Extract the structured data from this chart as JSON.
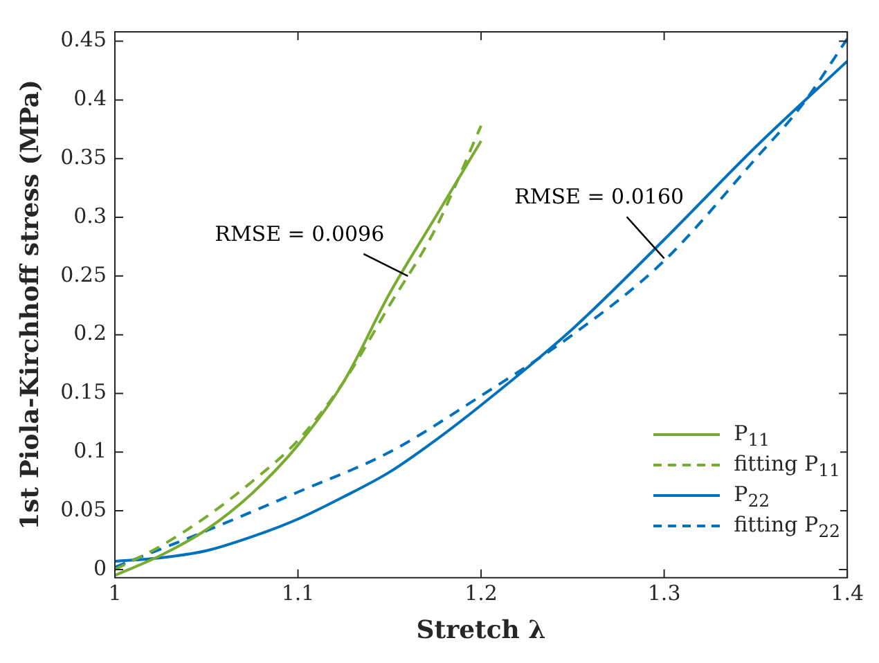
{
  "chart_data": {
    "type": "line",
    "xlabel": "Stretch λ",
    "ylabel": "1st Piola-Kirchhoff stress (MPa)",
    "xlim": [
      1,
      1.4
    ],
    "xticks": [
      1,
      1.1,
      1.2,
      1.3,
      1.4
    ],
    "ylim": [
      -0.007,
      0.458
    ],
    "yticks": [
      0,
      0.05,
      0.1,
      0.15,
      0.2,
      0.25,
      0.3,
      0.35,
      0.4,
      0.45
    ],
    "grid": false,
    "legend": "bottom right",
    "marker": "none",
    "series": [
      {
        "name": "P$_{11}$",
        "color": "#77ac30",
        "line_style": "solid",
        "x": [
          1,
          1.025,
          1.05,
          1.075,
          1.1,
          1.125,
          1.15,
          1.175,
          1.2
        ],
        "values": [
          -0.005,
          0.012,
          0.034,
          0.065,
          0.106,
          0.16,
          0.235,
          0.3,
          0.365
        ]
      },
      {
        "name": "fitting P$_{11}$",
        "color": "#77ac30",
        "line_style": "dashed",
        "x": [
          1,
          1.025,
          1.05,
          1.075,
          1.1,
          1.125,
          1.15,
          1.175,
          1.2
        ],
        "values": [
          0.0,
          0.02,
          0.045,
          0.075,
          0.11,
          0.16,
          0.225,
          0.29,
          0.378
        ]
      },
      {
        "name": "P$_{22}$",
        "color": "#0072bd",
        "line_style": "solid",
        "x": [
          1,
          1.025,
          1.05,
          1.075,
          1.1,
          1.125,
          1.15,
          1.175,
          1.2,
          1.25,
          1.3,
          1.35,
          1.4
        ],
        "values": [
          0.007,
          0.01,
          0.016,
          0.028,
          0.043,
          0.062,
          0.083,
          0.11,
          0.14,
          0.205,
          0.281,
          0.36,
          0.433
        ]
      },
      {
        "name": "fitting P$_{22}$",
        "color": "#0072bd",
        "line_style": "dashed",
        "x": [
          1,
          1.05,
          1.1,
          1.15,
          1.2,
          1.25,
          1.3,
          1.35,
          1.375,
          1.4
        ],
        "values": [
          0.002,
          0.033,
          0.066,
          0.1,
          0.148,
          0.2,
          0.263,
          0.35,
          0.395,
          0.452
        ]
      }
    ],
    "annotations": [
      {
        "text": "RMSE = 0.0096",
        "x": 1.16,
        "y": 0.25
      },
      {
        "text": "RMSE = 0.0160",
        "x": 1.3,
        "y": 0.265
      }
    ]
  }
}
